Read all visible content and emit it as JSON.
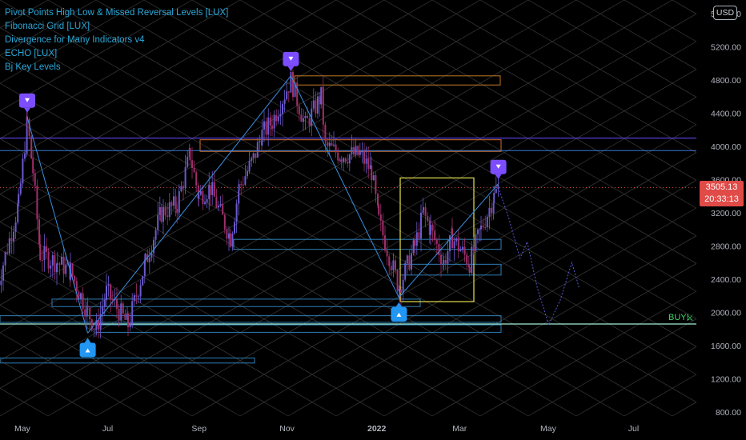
{
  "legend": [
    "Pivot Points High Low & Missed Reversal Levels [LUX]",
    "Fibonacci Grid [LUX]",
    "Divergence for Many Indicators v4",
    "ECHO [LUX]",
    "Bj Key Levels"
  ],
  "currency": "USD",
  "price_tag": {
    "price": "3505.13",
    "countdown": "20:33:13"
  },
  "buy_label": "BUY!",
  "colors": {
    "background": "#000000",
    "candle_up": "#6a5acd",
    "candle_down": "#a0306a",
    "pivot_up": "#2196f3",
    "pivot_down": "#7c4dff",
    "fib_grid": "#3a3a3a",
    "price_line": "#e04a47",
    "buy": "#3cd56a"
  },
  "chart_data": {
    "type": "candlestick",
    "title": "",
    "y_axis": {
      "ticks": [
        "5600.00",
        "5200.00",
        "4800.00",
        "4400.00",
        "4000.00",
        "3600.00",
        "3200.00",
        "2800.00",
        "2400.00",
        "2000.00",
        "1600.00",
        "1200.00",
        "800.00"
      ],
      "range": [
        800,
        5700
      ],
      "position": "right"
    },
    "x_axis": {
      "ticks": [
        "May",
        "Jul",
        "Sep",
        "Nov",
        "2022",
        "Mar",
        "May",
        "Jul"
      ]
    },
    "last_price": 3505.13,
    "price_path": [
      [
        "2021-04-20",
        2300
      ],
      [
        "2021-05-05",
        3300
      ],
      [
        "2021-05-11",
        4300
      ],
      [
        "2021-05-15",
        3700
      ],
      [
        "2021-05-20",
        2700
      ],
      [
        "2021-06-01",
        2600
      ],
      [
        "2021-06-10",
        2500
      ],
      [
        "2021-06-22",
        2000
      ],
      [
        "2021-06-28",
        1800
      ],
      [
        "2021-07-05",
        2250
      ],
      [
        "2021-07-20",
        1850
      ],
      [
        "2021-08-01",
        2600
      ],
      [
        "2021-08-12",
        3200
      ],
      [
        "2021-08-23",
        3300
      ],
      [
        "2021-09-01",
        3900
      ],
      [
        "2021-09-07",
        3400
      ],
      [
        "2021-09-15",
        3500
      ],
      [
        "2021-09-29",
        2900
      ],
      [
        "2021-10-05",
        3500
      ],
      [
        "2021-10-15",
        3850
      ],
      [
        "2021-10-21",
        4150
      ],
      [
        "2021-10-28",
        4300
      ],
      [
        "2021-11-10",
        4800
      ],
      [
        "2021-11-20",
        4250
      ],
      [
        "2021-12-01",
        4600
      ],
      [
        "2021-12-04",
        4000
      ],
      [
        "2021-12-15",
        3900
      ],
      [
        "2021-12-28",
        3900
      ],
      [
        "2022-01-05",
        3700
      ],
      [
        "2022-01-10",
        3100
      ],
      [
        "2022-01-24",
        2300
      ],
      [
        "2022-02-04",
        2800
      ],
      [
        "2022-02-10",
        3200
      ],
      [
        "2022-02-15",
        3000
      ],
      [
        "2022-02-24",
        2600
      ],
      [
        "2022-03-02",
        2900
      ],
      [
        "2022-03-14",
        2600
      ],
      [
        "2022-03-22",
        3000
      ],
      [
        "2022-03-31",
        3400
      ],
      [
        "2022-04-03",
        3505
      ]
    ],
    "echo_projection": [
      [
        "2022-04-03",
        3505
      ],
      [
        "2022-04-10",
        3150
      ],
      [
        "2022-04-18",
        2650
      ],
      [
        "2022-04-23",
        2850
      ],
      [
        "2022-04-30",
        2300
      ],
      [
        "2022-05-08",
        1850
      ],
      [
        "2022-05-16",
        2150
      ],
      [
        "2022-05-24",
        2600
      ],
      [
        "2022-05-29",
        2300
      ]
    ],
    "pivots": [
      {
        "type": "high",
        "date": "2021-05-11",
        "price": 4350
      },
      {
        "type": "low",
        "date": "2021-06-22",
        "price": 1750
      },
      {
        "type": "high",
        "date": "2021-11-10",
        "price": 4850
      },
      {
        "type": "low",
        "date": "2022-01-24",
        "price": 2180
      },
      {
        "type": "high",
        "date": "2022-04-03",
        "price": 3550
      }
    ],
    "key_levels": [
      4100,
      3950,
      3500,
      1860
    ],
    "grid": false,
    "legend_position": "top-left"
  }
}
